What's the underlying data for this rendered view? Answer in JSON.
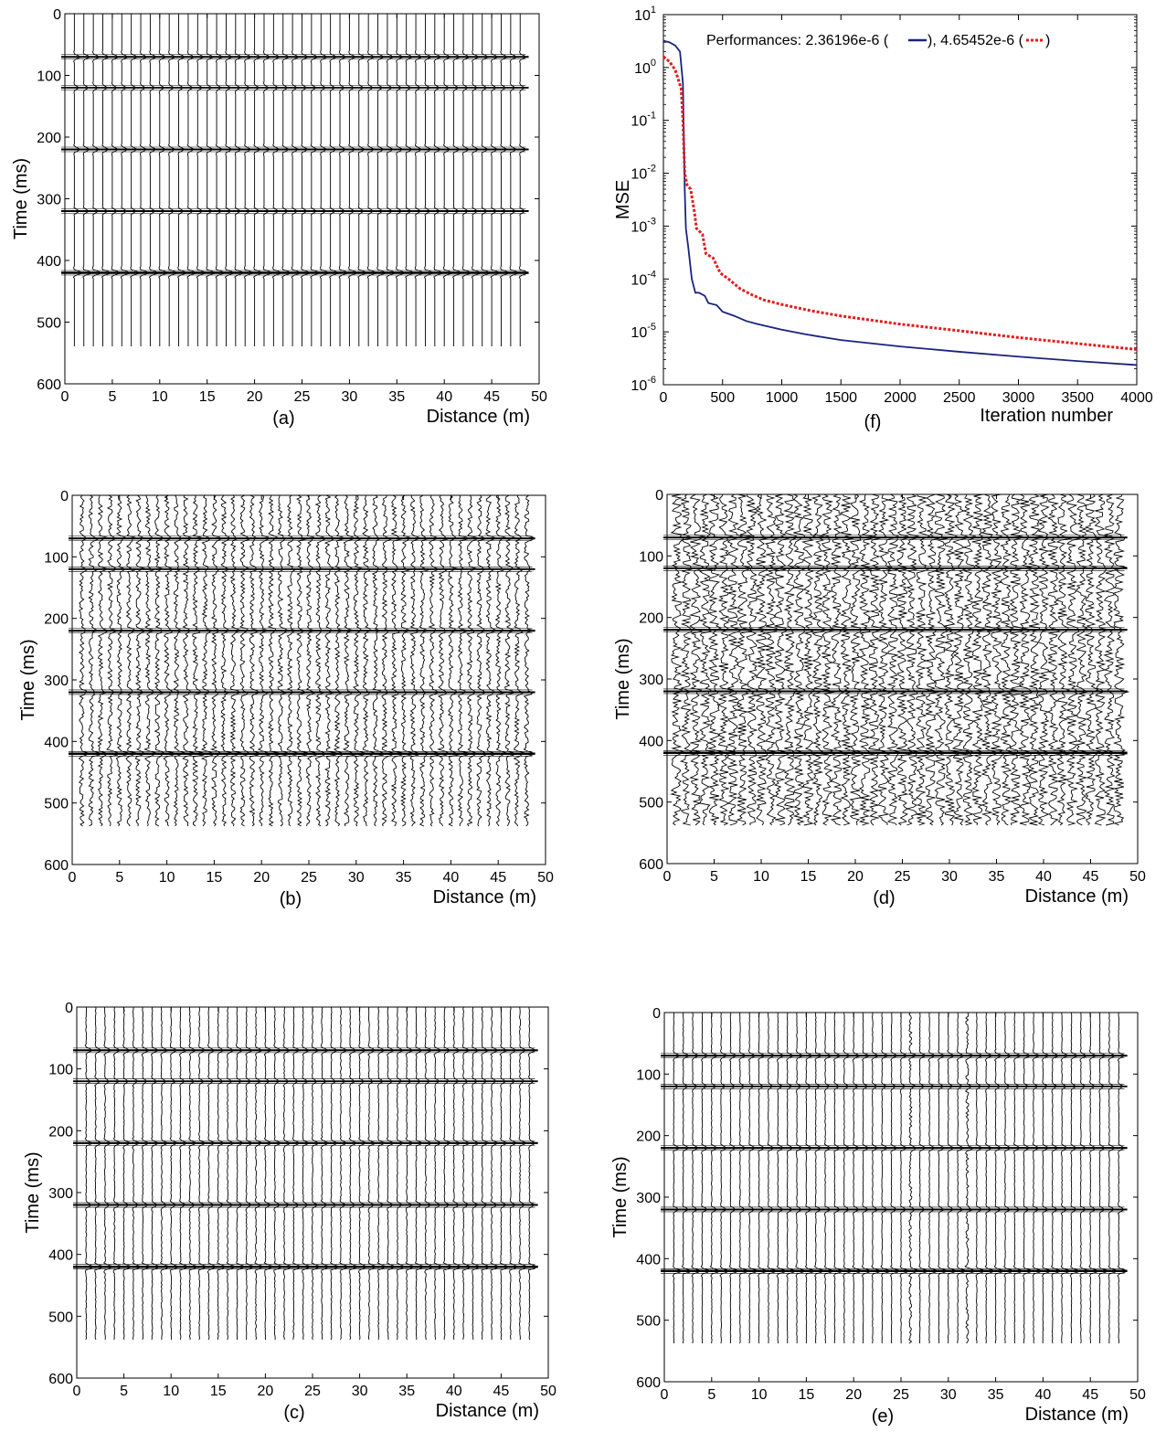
{
  "figure": {
    "wiggle_panels": [
      {
        "id": "a",
        "panel_label": "(a)",
        "xlabel": "Distance (m)",
        "ylabel": "Time (ms)",
        "x_ticks": [
          "0",
          "5",
          "10",
          "15",
          "20",
          "25",
          "30",
          "35",
          "40",
          "45",
          "50"
        ],
        "y_ticks": [
          "0",
          "100",
          "200",
          "300",
          "400",
          "500",
          "600"
        ],
        "noise_level": "none",
        "strong_noise_traces": []
      },
      {
        "id": "b",
        "panel_label": "(b)",
        "xlabel": "Distance (m)",
        "ylabel": "Time (ms)",
        "x_ticks": [
          "0",
          "5",
          "10",
          "15",
          "20",
          "25",
          "30",
          "35",
          "40",
          "45",
          "50"
        ],
        "y_ticks": [
          "0",
          "100",
          "200",
          "300",
          "400",
          "500",
          "600"
        ],
        "noise_level": "medium",
        "strong_noise_traces": []
      },
      {
        "id": "c",
        "panel_label": "(c)",
        "xlabel": "Distance (m)",
        "ylabel": "Time (ms)",
        "x_ticks": [
          "0",
          "5",
          "10",
          "15",
          "20",
          "25",
          "30",
          "35",
          "40",
          "45",
          "50"
        ],
        "y_ticks": [
          "0",
          "100",
          "200",
          "300",
          "400",
          "500",
          "600"
        ],
        "noise_level": "low",
        "strong_noise_traces": []
      },
      {
        "id": "d",
        "panel_label": "(d)",
        "xlabel": "Distance (m)",
        "ylabel": "Time (ms)",
        "x_ticks": [
          "0",
          "5",
          "10",
          "15",
          "20",
          "25",
          "30",
          "35",
          "40",
          "45",
          "50"
        ],
        "y_ticks": [
          "0",
          "100",
          "200",
          "300",
          "400",
          "500",
          "600"
        ],
        "noise_level": "high",
        "strong_noise_traces": []
      },
      {
        "id": "e",
        "panel_label": "(e)",
        "xlabel": "Distance (m)",
        "ylabel": "Time (ms)",
        "x_ticks": [
          "0",
          "5",
          "10",
          "15",
          "20",
          "25",
          "30",
          "35",
          "40",
          "45",
          "50"
        ],
        "y_ticks": [
          "0",
          "100",
          "200",
          "300",
          "400",
          "500",
          "600"
        ],
        "noise_level": "very-low",
        "strong_noise_traces": [
          26,
          32
        ]
      }
    ],
    "mse_panel": {
      "id": "f",
      "panel_label": "(f)",
      "xlabel": "Iteration number",
      "ylabel": "MSE",
      "x_ticks": [
        "0",
        "500",
        "1000",
        "1500",
        "2000",
        "2500",
        "3000",
        "3500",
        "4000"
      ],
      "y_tick_exponents": [
        "1",
        "0",
        "-1",
        "-2",
        "-3",
        "-4",
        "-5",
        "-6"
      ],
      "y_tick_base": "10",
      "legend_text_1": "Performances: 2.36196e-6 (",
      "legend_text_2": "), 4.65452e-6 (",
      "legend_text_3": ")"
    }
  },
  "chart_data": [
    {
      "type": "line",
      "subtype": "seismic wiggle traces",
      "panel": "(a)",
      "xlabel": "Distance (m)",
      "ylabel": "Time (ms)",
      "xlim": [
        0,
        50
      ],
      "ylim": [
        600,
        0
      ],
      "trace_positions_m": [
        1,
        2,
        3,
        4,
        5,
        6,
        7,
        8,
        9,
        10,
        11,
        12,
        13,
        14,
        15,
        16,
        17,
        18,
        19,
        20,
        21,
        22,
        23,
        24,
        25,
        26,
        27,
        28,
        29,
        30,
        31,
        32,
        33,
        34,
        35,
        36,
        37,
        38,
        39,
        40,
        41,
        42,
        43,
        44,
        45,
        46,
        47,
        48
      ],
      "trace_end_time_ms": 540,
      "reflector_times_ms": [
        70,
        120,
        220,
        320,
        420
      ],
      "reflector_strengths": [
        0.7,
        0.5,
        0.7,
        0.6,
        1.0
      ],
      "noise": "none"
    },
    {
      "type": "line",
      "subtype": "seismic wiggle traces",
      "panel": "(b)",
      "xlabel": "Distance (m)",
      "ylabel": "Time (ms)",
      "xlim": [
        0,
        50
      ],
      "ylim": [
        600,
        0
      ],
      "trace_positions_m": [
        1,
        2,
        3,
        4,
        5,
        6,
        7,
        8,
        9,
        10,
        11,
        12,
        13,
        14,
        15,
        16,
        17,
        18,
        19,
        20,
        21,
        22,
        23,
        24,
        25,
        26,
        27,
        28,
        29,
        30,
        31,
        32,
        33,
        34,
        35,
        36,
        37,
        38,
        39,
        40,
        41,
        42,
        43,
        44,
        45,
        46,
        47,
        48
      ],
      "trace_end_time_ms": 540,
      "reflector_times_ms": [
        70,
        120,
        220,
        320,
        420
      ],
      "noise": "random noise on all traces"
    },
    {
      "type": "line",
      "subtype": "seismic wiggle traces",
      "panel": "(c)",
      "xlabel": "Distance (m)",
      "ylabel": "Time (ms)",
      "xlim": [
        0,
        50
      ],
      "ylim": [
        600,
        0
      ],
      "trace_positions_m": [
        1,
        2,
        3,
        4,
        5,
        6,
        7,
        8,
        9,
        10,
        11,
        12,
        13,
        14,
        15,
        16,
        17,
        18,
        19,
        20,
        21,
        22,
        23,
        24,
        25,
        26,
        27,
        28,
        29,
        30,
        31,
        32,
        33,
        34,
        35,
        36,
        37,
        38,
        39,
        40,
        41,
        42,
        43,
        44,
        45,
        46,
        47,
        48
      ],
      "trace_end_time_ms": 540,
      "reflector_times_ms": [
        70,
        120,
        220,
        320,
        420
      ],
      "noise": "weak residual noise"
    },
    {
      "type": "line",
      "subtype": "seismic wiggle traces",
      "panel": "(d)",
      "xlabel": "Distance (m)",
      "ylabel": "Time (ms)",
      "xlim": [
        0,
        50
      ],
      "ylim": [
        600,
        0
      ],
      "trace_positions_m": [
        1,
        2,
        3,
        4,
        5,
        6,
        7,
        8,
        9,
        10,
        11,
        12,
        13,
        14,
        15,
        16,
        17,
        18,
        19,
        20,
        21,
        22,
        23,
        24,
        25,
        26,
        27,
        28,
        29,
        30,
        31,
        32,
        33,
        34,
        35,
        36,
        37,
        38,
        39,
        40,
        41,
        42,
        43,
        44,
        45,
        46,
        47,
        48
      ],
      "trace_end_time_ms": 540,
      "reflector_times_ms": [
        70,
        120,
        220,
        320,
        420
      ],
      "noise": "strong random noise on all traces"
    },
    {
      "type": "line",
      "subtype": "seismic wiggle traces",
      "panel": "(e)",
      "xlabel": "Distance (m)",
      "ylabel": "Time (ms)",
      "xlim": [
        0,
        50
      ],
      "ylim": [
        600,
        0
      ],
      "trace_positions_m": [
        1,
        2,
        3,
        4,
        5,
        6,
        7,
        8,
        9,
        10,
        11,
        12,
        13,
        14,
        15,
        16,
        17,
        18,
        19,
        20,
        21,
        22,
        23,
        24,
        25,
        26,
        27,
        28,
        29,
        30,
        31,
        32,
        33,
        34,
        35,
        36,
        37,
        38,
        39,
        40,
        41,
        42,
        43,
        44,
        45,
        46,
        47,
        48
      ],
      "trace_end_time_ms": 540,
      "reflector_times_ms": [
        70,
        120,
        220,
        320,
        420
      ],
      "noise": "weak residual noise, stronger noise on traces at 26 m and 32 m"
    },
    {
      "type": "line",
      "panel": "(f)",
      "xlabel": "Iteration number",
      "ylabel": "MSE",
      "xlim": [
        0,
        4000
      ],
      "ylim": [
        1e-06,
        10
      ],
      "yscale": "log",
      "legend": "Performances: 2.36196e-6 (—), 4.65452e-6 (···)",
      "series": [
        {
          "color": "#1a237e",
          "style": "solid",
          "final_value": 2.36196e-06,
          "points": [
            [
              0,
              3.2
            ],
            [
              50,
              3.0
            ],
            [
              100,
              2.6
            ],
            [
              140,
              2.0
            ],
            [
              165,
              0.5
            ],
            [
              180,
              0.005
            ],
            [
              190,
              0.0009
            ],
            [
              210,
              0.0004
            ],
            [
              240,
              0.0001
            ],
            [
              270,
              5.5e-05
            ],
            [
              300,
              5.5e-05
            ],
            [
              350,
              4.8e-05
            ],
            [
              380,
              3.5e-05
            ],
            [
              450,
              3.2e-05
            ],
            [
              500,
              2.4e-05
            ],
            [
              600,
              2e-05
            ],
            [
              700,
              1.6e-05
            ],
            [
              800,
              1.4e-05
            ],
            [
              1000,
              1.1e-05
            ],
            [
              1200,
              9e-06
            ],
            [
              1500,
              7e-06
            ],
            [
              2000,
              5.3e-06
            ],
            [
              2500,
              4.2e-06
            ],
            [
              3000,
              3.4e-06
            ],
            [
              3500,
              2.8e-06
            ],
            [
              4000,
              2.36e-06
            ]
          ]
        },
        {
          "color": "#e41a1c",
          "style": "dotted",
          "final_value": 4.65452e-06,
          "points": [
            [
              0,
              1.6
            ],
            [
              50,
              1.3
            ],
            [
              100,
              0.9
            ],
            [
              150,
              0.4
            ],
            [
              165,
              0.1
            ],
            [
              180,
              0.01
            ],
            [
              200,
              0.006
            ],
            [
              230,
              0.005
            ],
            [
              260,
              0.002
            ],
            [
              280,
              0.0009
            ],
            [
              330,
              0.0007
            ],
            [
              360,
              0.0003
            ],
            [
              420,
              0.00025
            ],
            [
              480,
              0.00013
            ],
            [
              550,
              0.0001
            ],
            [
              650,
              6.5e-05
            ],
            [
              750,
              5e-05
            ],
            [
              850,
              4e-05
            ],
            [
              1000,
              3.3e-05
            ],
            [
              1250,
              2.5e-05
            ],
            [
              1500,
              2e-05
            ],
            [
              2000,
              1.4e-05
            ],
            [
              2500,
              1.05e-05
            ],
            [
              3000,
              7.8e-06
            ],
            [
              3500,
              6e-06
            ],
            [
              4000,
              4.65e-06
            ]
          ]
        }
      ]
    }
  ]
}
